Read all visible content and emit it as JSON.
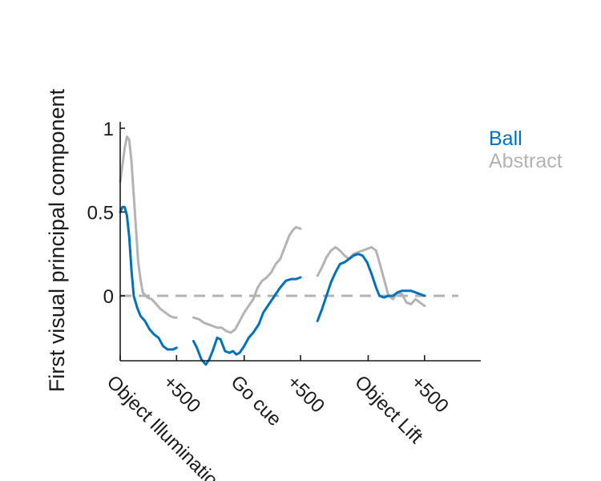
{
  "chart_data": {
    "type": "line",
    "title": "",
    "ylabel": "First visual principal component",
    "xlabel": "",
    "ylim": [
      -0.4,
      1.05
    ],
    "y_ticks": [
      {
        "value": 0,
        "label": "0"
      },
      {
        "value": 0.5,
        "label": "0.5"
      },
      {
        "value": 1,
        "label": "1"
      }
    ],
    "x_range": [
      0,
      3000
    ],
    "x_ticks": [
      {
        "value": 0,
        "label": "Object Illumination"
      },
      {
        "value": 500,
        "label": "+500"
      },
      {
        "value": 1100,
        "label": "Go cue"
      },
      {
        "value": 1600,
        "label": "+500"
      },
      {
        "value": 2200,
        "label": "Object Lift"
      },
      {
        "value": 2700,
        "label": "+500"
      }
    ],
    "reference_line": {
      "y": 0,
      "style": "dashed",
      "color": "#b3b3b3"
    },
    "legend": {
      "placement": "top-right"
    },
    "series": [
      {
        "name": "Ball",
        "color": "#0072bd",
        "segments": [
          [
            [
              0,
              0.5
            ],
            [
              20,
              0.53
            ],
            [
              40,
              0.53
            ],
            [
              60,
              0.48
            ],
            [
              80,
              0.35
            ],
            [
              100,
              0.15
            ],
            [
              120,
              0.0
            ],
            [
              150,
              -0.07
            ],
            [
              180,
              -0.12
            ],
            [
              220,
              -0.15
            ],
            [
              260,
              -0.2
            ],
            [
              300,
              -0.23
            ],
            [
              340,
              -0.25
            ],
            [
              380,
              -0.3
            ],
            [
              420,
              -0.32
            ],
            [
              470,
              -0.32
            ],
            [
              500,
              -0.31
            ]
          ],
          [
            [
              650,
              -0.27
            ],
            [
              680,
              -0.31
            ],
            [
              720,
              -0.38
            ],
            [
              760,
              -0.41
            ],
            [
              790,
              -0.38
            ],
            [
              820,
              -0.33
            ],
            [
              860,
              -0.25
            ],
            [
              890,
              -0.26
            ],
            [
              930,
              -0.33
            ],
            [
              970,
              -0.34
            ],
            [
              1000,
              -0.33
            ],
            [
              1030,
              -0.35
            ],
            [
              1060,
              -0.34
            ],
            [
              1100,
              -0.3
            ],
            [
              1140,
              -0.25
            ],
            [
              1180,
              -0.22
            ],
            [
              1230,
              -0.17
            ],
            [
              1270,
              -0.1
            ],
            [
              1320,
              -0.05
            ],
            [
              1370,
              0.0
            ],
            [
              1420,
              0.05
            ],
            [
              1470,
              0.09
            ],
            [
              1520,
              0.1
            ],
            [
              1560,
              0.1
            ],
            [
              1600,
              0.11
            ]
          ],
          [
            [
              1750,
              -0.15
            ],
            [
              1790,
              -0.08
            ],
            [
              1830,
              0.0
            ],
            [
              1870,
              0.08
            ],
            [
              1910,
              0.14
            ],
            [
              1950,
              0.19
            ],
            [
              1990,
              0.2
            ],
            [
              2030,
              0.22
            ],
            [
              2070,
              0.24
            ],
            [
              2110,
              0.25
            ],
            [
              2150,
              0.24
            ],
            [
              2190,
              0.2
            ],
            [
              2230,
              0.13
            ],
            [
              2270,
              0.05
            ],
            [
              2300,
              0.0
            ],
            [
              2340,
              -0.01
            ],
            [
              2380,
              0.0
            ],
            [
              2420,
              0.0
            ],
            [
              2460,
              0.02
            ],
            [
              2500,
              0.03
            ],
            [
              2540,
              0.03
            ],
            [
              2580,
              0.03
            ],
            [
              2620,
              0.02
            ],
            [
              2660,
              0.01
            ],
            [
              2700,
              0.0
            ]
          ]
        ]
      },
      {
        "name": "Abstract",
        "color": "#b3b3b3",
        "segments": [
          [
            [
              0,
              0.68
            ],
            [
              20,
              0.78
            ],
            [
              40,
              0.88
            ],
            [
              60,
              0.95
            ],
            [
              80,
              0.93
            ],
            [
              100,
              0.8
            ],
            [
              120,
              0.6
            ],
            [
              140,
              0.4
            ],
            [
              160,
              0.2
            ],
            [
              180,
              0.1
            ],
            [
              200,
              0.02
            ],
            [
              240,
              -0.01
            ],
            [
              280,
              -0.02
            ],
            [
              320,
              -0.05
            ],
            [
              360,
              -0.08
            ],
            [
              400,
              -0.1
            ],
            [
              440,
              -0.12
            ],
            [
              480,
              -0.13
            ],
            [
              500,
              -0.13
            ]
          ],
          [
            [
              650,
              -0.13
            ],
            [
              700,
              -0.14
            ],
            [
              740,
              -0.16
            ],
            [
              780,
              -0.17
            ],
            [
              820,
              -0.18
            ],
            [
              860,
              -0.19
            ],
            [
              900,
              -0.19
            ],
            [
              940,
              -0.21
            ],
            [
              980,
              -0.22
            ],
            [
              1020,
              -0.2
            ],
            [
              1060,
              -0.15
            ],
            [
              1100,
              -0.1
            ],
            [
              1140,
              -0.06
            ],
            [
              1180,
              -0.02
            ],
            [
              1220,
              0.05
            ],
            [
              1260,
              0.09
            ],
            [
              1300,
              0.11
            ],
            [
              1340,
              0.14
            ],
            [
              1380,
              0.19
            ],
            [
              1420,
              0.22
            ],
            [
              1460,
              0.29
            ],
            [
              1500,
              0.36
            ],
            [
              1530,
              0.39
            ],
            [
              1560,
              0.41
            ],
            [
              1600,
              0.4
            ]
          ],
          [
            [
              1750,
              0.12
            ],
            [
              1790,
              0.17
            ],
            [
              1830,
              0.23
            ],
            [
              1870,
              0.27
            ],
            [
              1910,
              0.29
            ],
            [
              1950,
              0.27
            ],
            [
              1990,
              0.24
            ],
            [
              2030,
              0.22
            ],
            [
              2070,
              0.25
            ],
            [
              2110,
              0.26
            ],
            [
              2150,
              0.27
            ],
            [
              2190,
              0.28
            ],
            [
              2230,
              0.29
            ],
            [
              2270,
              0.27
            ],
            [
              2300,
              0.2
            ],
            [
              2340,
              0.1
            ],
            [
              2380,
              0.0
            ],
            [
              2420,
              -0.02
            ],
            [
              2460,
              0.02
            ],
            [
              2500,
              0.01
            ],
            [
              2540,
              -0.04
            ],
            [
              2580,
              -0.05
            ],
            [
              2620,
              -0.02
            ],
            [
              2660,
              -0.04
            ],
            [
              2700,
              -0.06
            ]
          ]
        ]
      }
    ]
  }
}
